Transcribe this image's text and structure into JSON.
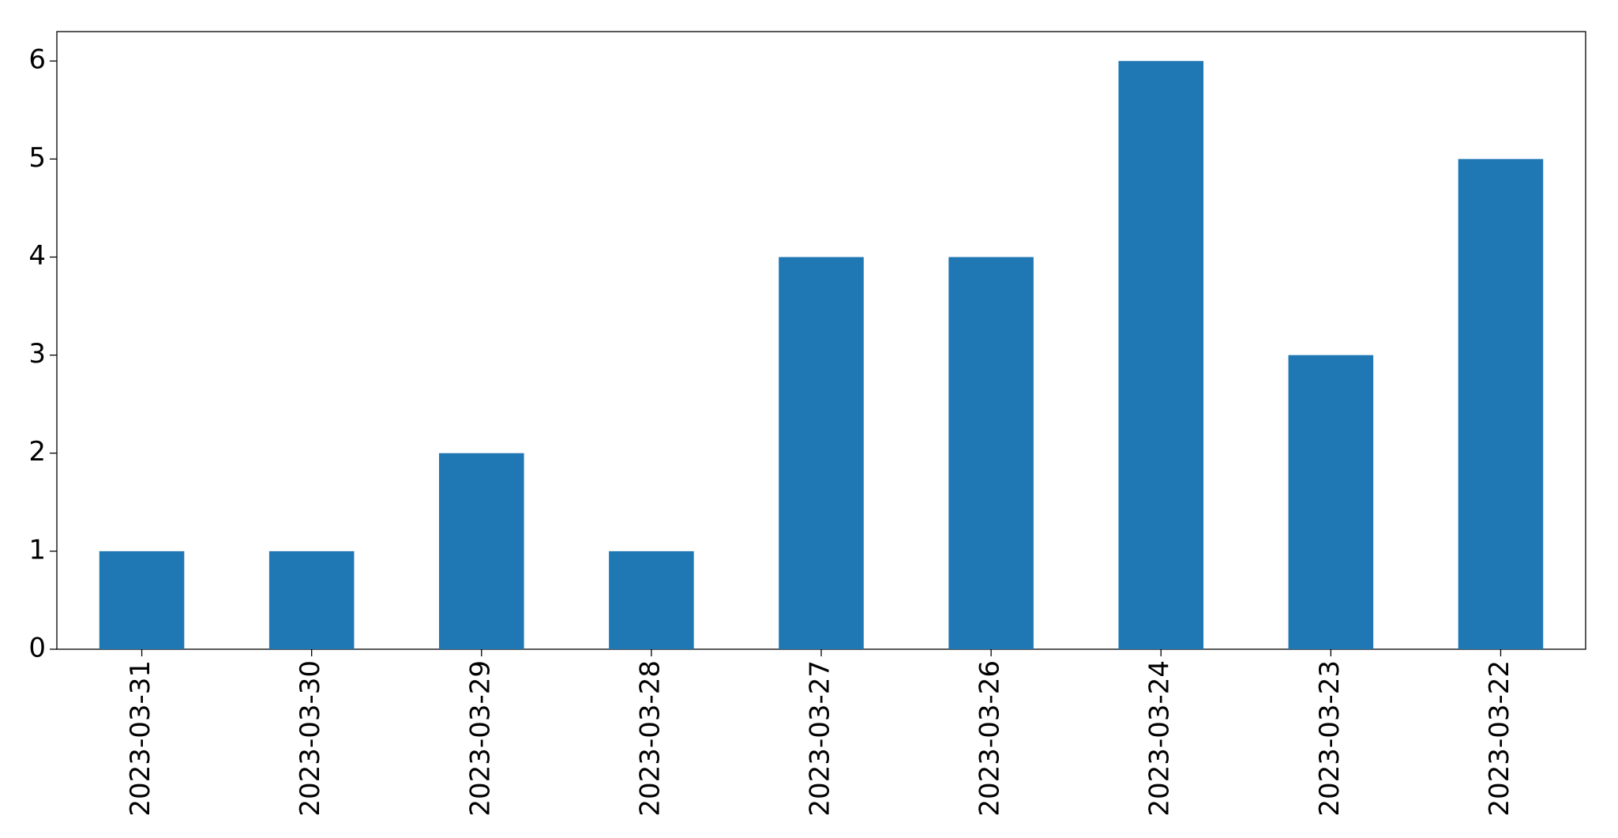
{
  "chart_data": {
    "type": "bar",
    "categories": [
      "2023-03-31",
      "2023-03-30",
      "2023-03-29",
      "2023-03-28",
      "2023-03-27",
      "2023-03-26",
      "2023-03-24",
      "2023-03-23",
      "2023-03-22"
    ],
    "values": [
      1,
      1,
      2,
      1,
      4,
      4,
      6,
      3,
      5
    ],
    "color": "#1f77b4",
    "ylim": [
      0,
      6.3
    ],
    "yticks": [
      0,
      1,
      2,
      3,
      4,
      5,
      6
    ],
    "grid": false
  }
}
